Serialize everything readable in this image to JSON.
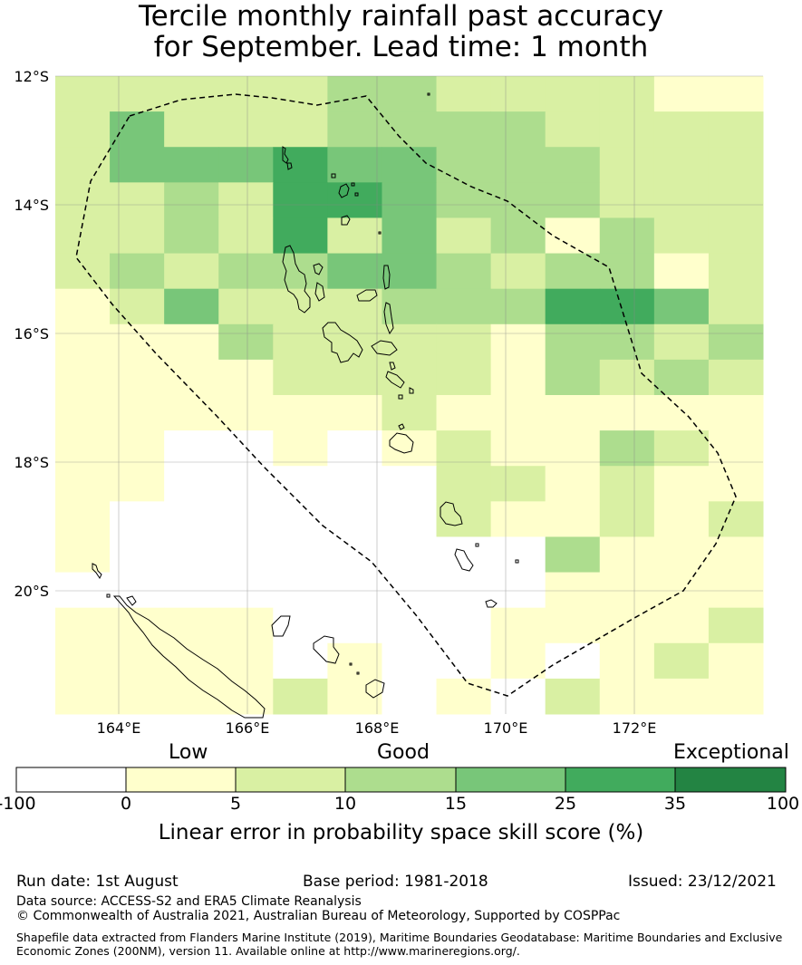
{
  "title": {
    "line1": "Tercile monthly rainfall past accuracy",
    "line2": "for September. Lead time: 1 month"
  },
  "map": {
    "lat_labels": [
      "12°S",
      "14°S",
      "16°S",
      "18°S",
      "20°S"
    ],
    "lon_labels": [
      "164°E",
      "166°E",
      "168°E",
      "170°E",
      "172°E"
    ],
    "boundary_style": "dashed",
    "gridlines": true
  },
  "skill_grid": {
    "rows": 18,
    "cols": 13,
    "levels": [
      "LLLLL11LLLL00",
      "L2LLL1111LLLL",
      "L222322111LLL",
      "LL1L332111LLL",
      "LL1L3L2L101LL",
      "L1L11221L110L",
      "0L2LLL111332L",
      "0001LLLL011L1",
      "0000LLLL01L1L",
      "000000L000000",
      "00--0-0L001L0",
      "00-----LL0L00",
      "0------L00L0L",
      "0--------1000",
      "---------0000",
      "0000----0000L",
      "0000-0--0-0L0",
      "0000L0-0-L000"
    ],
    "legend_key": {
      "-": "-100 to 0",
      "0": "0 to 5",
      "L": "5 to 10",
      "1": "10 to 15",
      "2": "15 to 25",
      "3": "25 to 35"
    }
  },
  "colorbar": {
    "words": [
      "Low",
      "Good",
      "Exceptional"
    ],
    "ticks": [
      "-100",
      "0",
      "5",
      "10",
      "15",
      "25",
      "35",
      "100"
    ],
    "colors": [
      "#ffffff",
      "#ffffcc",
      "#d9f0a3",
      "#addd8e",
      "#78c679",
      "#41ab5d",
      "#238443"
    ],
    "title": "Linear error in probability space skill score (%)"
  },
  "footer": {
    "run_date": "Run date: 1st August",
    "base_period": "Base period: 1981-2018",
    "issued": "Issued: 23/12/2021",
    "data_source": "Data source: ACCESS-S2 and ERA5 Climate Reanalysis",
    "copyright": "© Commonwealth of Australia 2021, Australian Bureau of Meteorology, Supported by COSPPac",
    "shapefile_line1": "Shapefile data extracted from Flanders Marine Institute (2019), Maritime Boundaries Geodatabase: Maritime Boundaries and Exclusive",
    "shapefile_line2": "Economic Zones (200NM), version 11. Available online at http://www.marineregions.org/."
  }
}
